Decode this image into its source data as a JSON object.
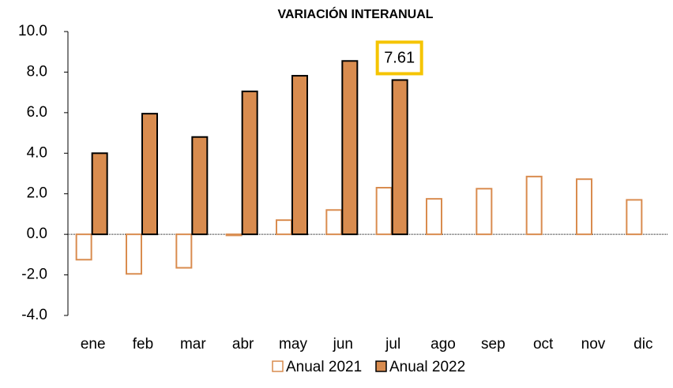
{
  "chart_data": {
    "type": "bar",
    "title": "VARIACIÓN INTERANUAL",
    "categories": [
      "ene",
      "feb",
      "mar",
      "abr",
      "may",
      "jun",
      "jul",
      "ago",
      "sep",
      "oct",
      "nov",
      "dic"
    ],
    "series": [
      {
        "name": "Anual 2021",
        "color": "#d98c4f",
        "values": [
          -1.25,
          -1.95,
          -1.65,
          -0.05,
          0.7,
          1.2,
          2.3,
          1.75,
          2.25,
          2.85,
          2.72,
          1.7
        ]
      },
      {
        "name": "Anual 2022",
        "color": "#d98c4f",
        "values": [
          4.0,
          5.95,
          4.8,
          7.05,
          7.82,
          8.55,
          7.61,
          null,
          null,
          null,
          null,
          null
        ]
      }
    ],
    "ylim": [
      -4,
      10
    ],
    "yticks": [
      {
        "value": -4,
        "label": "-4.0"
      },
      {
        "value": -2,
        "label": "-2.0"
      },
      {
        "value": 0,
        "label": "0.0"
      },
      {
        "value": 2,
        "label": "2.0"
      },
      {
        "value": 4,
        "label": "4.0"
      },
      {
        "value": 6,
        "label": "6.0"
      },
      {
        "value": 8,
        "label": "8.0"
      },
      {
        "value": 10,
        "label": "10.0"
      }
    ],
    "highlight_color": "#f5c400",
    "legend": "bottom"
  }
}
